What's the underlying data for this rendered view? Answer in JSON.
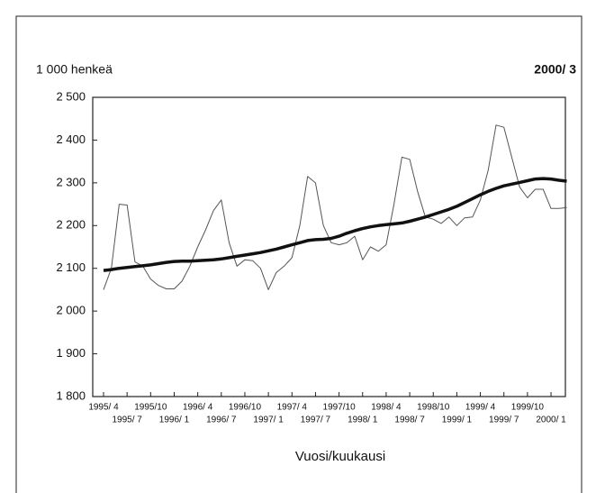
{
  "chart_data": {
    "type": "line",
    "y_unit_label": "1 000 henkeä",
    "period_label": "2000/ 3",
    "x_label": "Vuosi/kuukausi",
    "categories": [
      "1995/ 4",
      null,
      null,
      "1995/ 7",
      null,
      null,
      "1995/10",
      null,
      null,
      "1996/ 1",
      null,
      null,
      "1996/ 4",
      null,
      null,
      "1996/ 7",
      null,
      null,
      "1996/10",
      null,
      null,
      "1997/ 1",
      null,
      null,
      "1997/ 4",
      null,
      null,
      "1997/ 7",
      null,
      null,
      "1997/10",
      null,
      null,
      "1998/ 1",
      null,
      null,
      "1998/ 4",
      null,
      null,
      "1998/ 7",
      null,
      null,
      "1998/10",
      null,
      null,
      "1999/ 1",
      null,
      null,
      "1999/ 4",
      null,
      null,
      "1999/ 7",
      null,
      null,
      "1999/10",
      null,
      null,
      "2000/ 1",
      null,
      null
    ],
    "series": [
      {
        "color": "#555555",
        "width": 1,
        "values": [
          2050,
          2100,
          2250,
          2248,
          2115,
          2105,
          2075,
          2060,
          2052,
          2052,
          2070,
          2105,
          2150,
          2190,
          2235,
          2260,
          2160,
          2105,
          2120,
          2118,
          2100,
          2050,
          2090,
          2105,
          2125,
          2200,
          2315,
          2300,
          2200,
          2160,
          2155,
          2160,
          2175,
          2120,
          2150,
          2140,
          2155,
          2250,
          2360,
          2355,
          2280,
          2220,
          2215,
          2205,
          2220,
          2200,
          2218,
          2220,
          2260,
          2330,
          2435,
          2430,
          2360,
          2290,
          2265,
          2285,
          2285,
          2240,
          2240,
          2242
        ]
      },
      {
        "color": "#111111",
        "width": 3.5,
        "values": [
          2095,
          2097,
          2100,
          2102,
          2104,
          2106,
          2108,
          2111,
          2114,
          2116,
          2117,
          2117,
          2118,
          2119,
          2120,
          2122,
          2125,
          2128,
          2131,
          2134,
          2137,
          2141,
          2145,
          2150,
          2155,
          2160,
          2165,
          2167,
          2168,
          2170,
          2175,
          2182,
          2188,
          2193,
          2197,
          2200,
          2202,
          2204,
          2206,
          2210,
          2215,
          2220,
          2226,
          2232,
          2238,
          2245,
          2254,
          2263,
          2272,
          2280,
          2287,
          2293,
          2297,
          2301,
          2305,
          2309,
          2310,
          2309,
          2306,
          2304
        ]
      }
    ],
    "ylim": [
      1800,
      2500
    ],
    "yticks": [
      {
        "value": 1800,
        "label": "1 800"
      },
      {
        "value": 1900,
        "label": "1 900"
      },
      {
        "value": 2000,
        "label": "2 000"
      },
      {
        "value": 2100,
        "label": "2 100"
      },
      {
        "value": 2200,
        "label": "2 200"
      },
      {
        "value": 2300,
        "label": "2 300"
      },
      {
        "value": 2400,
        "label": "2 400"
      },
      {
        "value": 2500,
        "label": "2 500"
      }
    ],
    "grid": false
  }
}
